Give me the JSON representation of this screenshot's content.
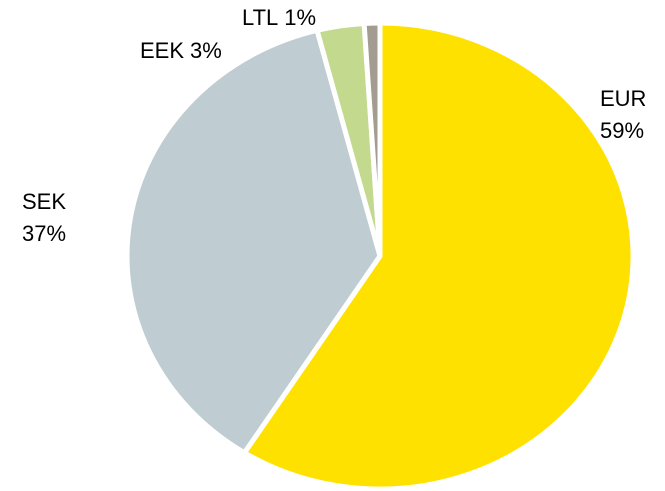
{
  "chart_data": {
    "type": "pie",
    "categories": [
      "EUR",
      "SEK",
      "EEK",
      "LTL"
    ],
    "values": [
      59,
      37,
      3,
      1
    ],
    "value_labels": [
      "59%",
      "37%",
      "3%",
      "1%"
    ],
    "colors": [
      "#ffe100",
      "#bfcdd2",
      "#c3d98e",
      "#a39d91"
    ]
  }
}
